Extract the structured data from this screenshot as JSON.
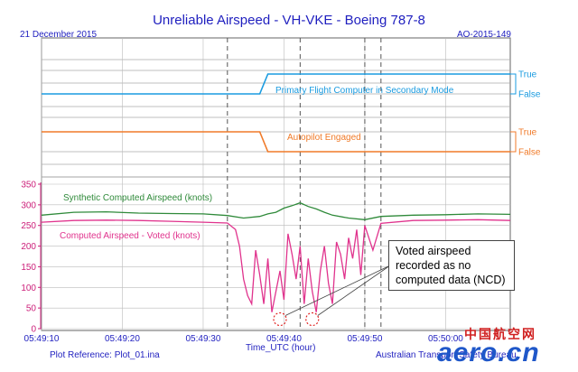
{
  "title": "Unreliable Airspeed - VH-VKE - Boeing 787-8",
  "date": "21 December 2015",
  "report_ref": "AO-2015-149",
  "plot_reference": "Plot Reference: Plot_01.ina",
  "credit": "Australian Transport Safety Bureau",
  "callout": "Voted airspeed recorded as no computed data (NCD)",
  "watermark": {
    "cn": "中国航空网",
    "logo": "aero.cn"
  },
  "colors": {
    "blue": "#1a9be0",
    "orange": "#f07a28",
    "green": "#2f8a3a",
    "magenta": "#e0338d",
    "text": "#1f1fbf"
  },
  "chart_data": [
    {
      "type": "line",
      "label": "Primary Flight Computer in Secondary Mode",
      "states": [
        "True",
        "False"
      ],
      "x": [
        "05:49:10",
        "05:49:37",
        "05:49:38",
        "05:50:08"
      ],
      "values": [
        0,
        0,
        1,
        1
      ]
    },
    {
      "type": "line",
      "label": "Autopilot Engaged",
      "states": [
        "True",
        "False"
      ],
      "x": [
        "05:49:10",
        "05:49:37",
        "05:49:38",
        "05:50:08"
      ],
      "values": [
        1,
        1,
        0,
        0
      ]
    },
    {
      "type": "line",
      "xlabel": "Time_UTC (hour)",
      "ylim": [
        0,
        350
      ],
      "yticks": [
        "0",
        "50",
        "100",
        "150",
        "200",
        "250",
        "300",
        "350"
      ],
      "xticks": [
        "05:49:10",
        "05:49:20",
        "05:49:30",
        "05:49:40",
        "05:49:50",
        "05:50:00"
      ],
      "vlines": [
        "05:49:33",
        "05:49:42",
        "05:49:50",
        "05:49:52"
      ],
      "ncd_markers": [
        {
          "x": "05:49:39.5",
          "y": 23
        },
        {
          "x": "05:49:43.5",
          "y": 23
        }
      ],
      "series": [
        {
          "name": "Synthetic Computed Airspeed (knots)",
          "color": "#2f8a3a",
          "x": [
            "05:49:10",
            "05:49:14",
            "05:49:18",
            "05:49:22",
            "05:49:26",
            "05:49:30",
            "05:49:33",
            "05:49:35",
            "05:49:37",
            "05:49:38",
            "05:49:39",
            "05:49:40",
            "05:49:41",
            "05:49:42",
            "05:49:43",
            "05:49:44",
            "05:49:45",
            "05:49:46",
            "05:49:48",
            "05:49:50",
            "05:49:52",
            "05:49:56",
            "05:50:00",
            "05:50:04",
            "05:50:08"
          ],
          "values": [
            275,
            282,
            283,
            280,
            279,
            278,
            274,
            268,
            272,
            278,
            282,
            292,
            298,
            305,
            296,
            290,
            282,
            275,
            268,
            264,
            272,
            275,
            276,
            278,
            277
          ]
        },
        {
          "name": "Computed Airspeed - Voted (knots)",
          "color": "#e0338d",
          "x": [
            "05:49:10",
            "05:49:14",
            "05:49:18",
            "05:49:22",
            "05:49:26",
            "05:49:30",
            "05:49:33",
            "05:49:34",
            "05:49:34.5",
            "05:49:35",
            "05:49:35.5",
            "05:49:36",
            "05:49:36.5",
            "05:49:37",
            "05:49:37.5",
            "05:49:38",
            "05:49:38.5",
            "05:49:39",
            "05:49:39.5",
            "05:49:40",
            "05:49:40.5",
            "05:49:41",
            "05:49:41.5",
            "05:49:42",
            "05:49:42.5",
            "05:49:43",
            "05:49:43.5",
            "05:49:44",
            "05:49:44.5",
            "05:49:45",
            "05:49:45.5",
            "05:49:46",
            "05:49:46.5",
            "05:49:47",
            "05:49:47.5",
            "05:49:48",
            "05:49:48.5",
            "05:49:49",
            "05:49:49.5",
            "05:49:50",
            "05:49:51",
            "05:49:52",
            "05:49:56",
            "05:50:00",
            "05:50:04",
            "05:50:08"
          ],
          "values": [
            258,
            262,
            263,
            262,
            260,
            258,
            256,
            240,
            200,
            120,
            80,
            60,
            190,
            130,
            60,
            170,
            40,
            90,
            140,
            70,
            230,
            180,
            120,
            200,
            60,
            170,
            90,
            40,
            140,
            200,
            110,
            60,
            210,
            180,
            120,
            220,
            170,
            240,
            130,
            250,
            190,
            255,
            262,
            263,
            264,
            262
          ]
        }
      ]
    }
  ]
}
